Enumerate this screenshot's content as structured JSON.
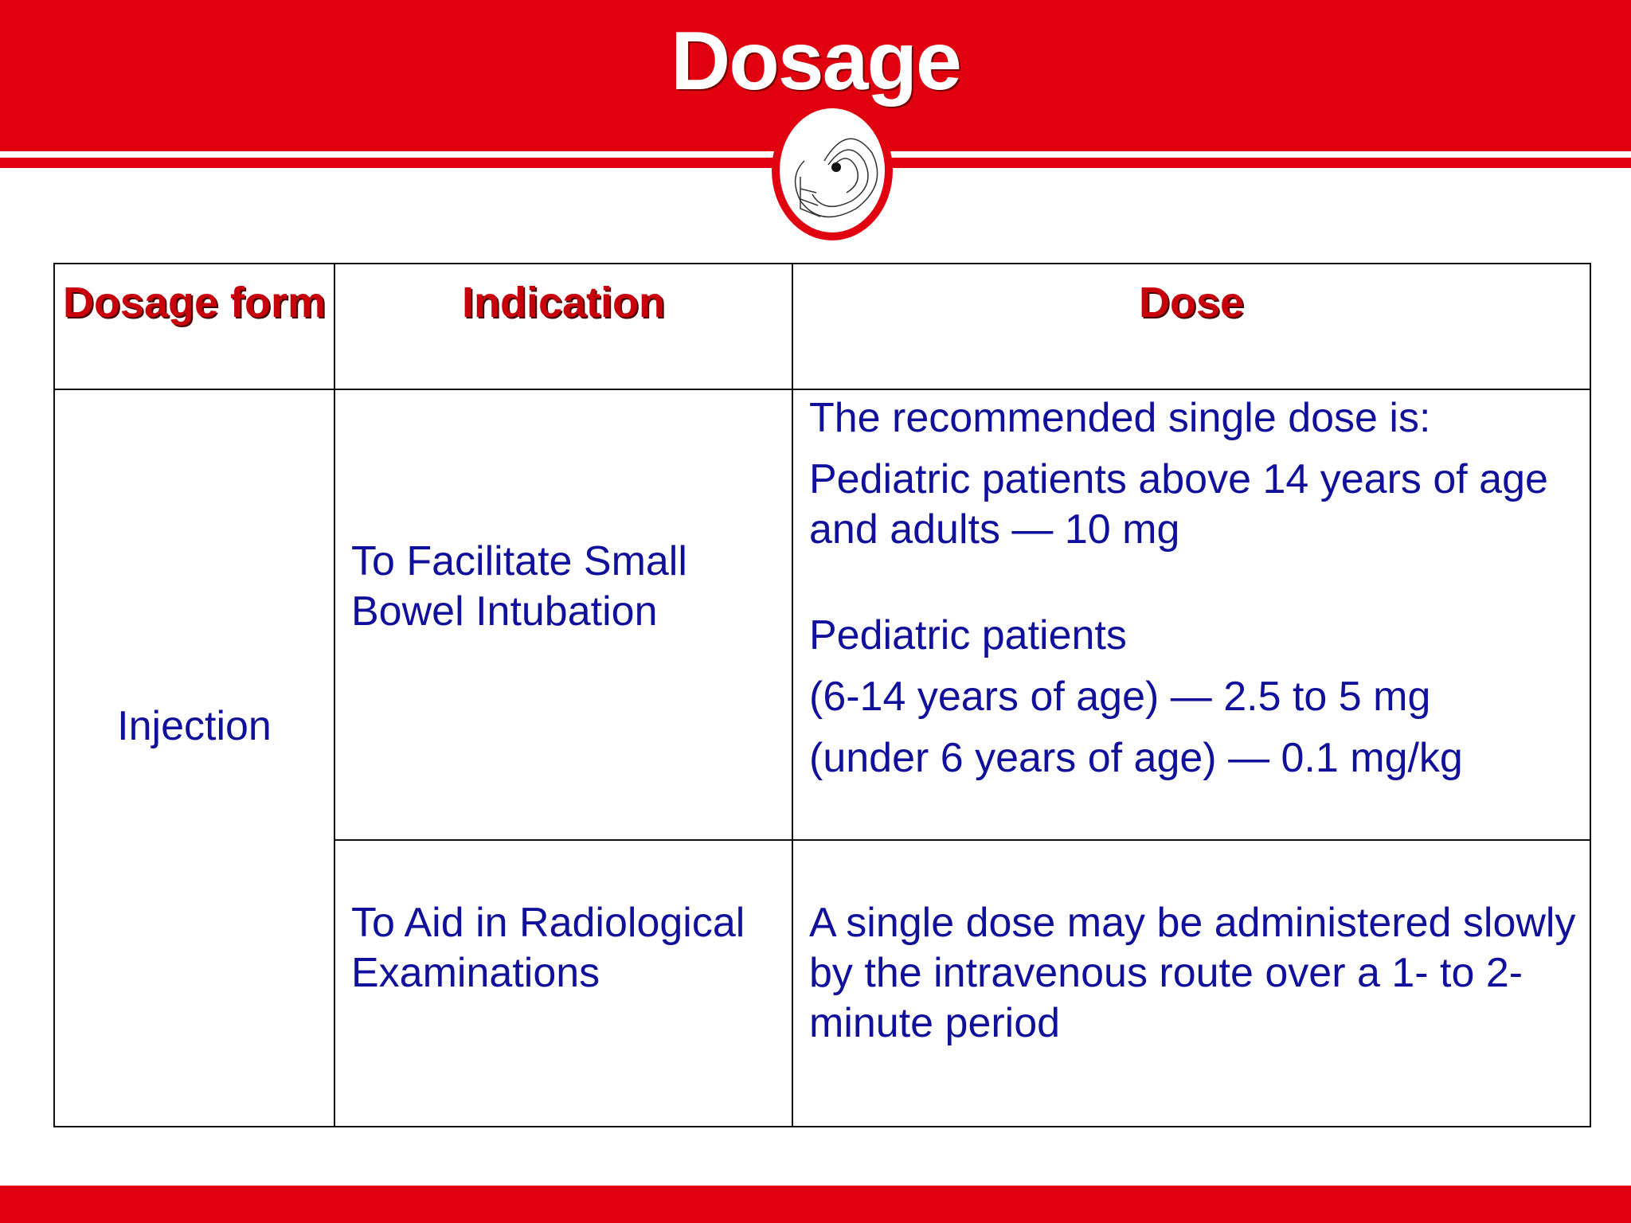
{
  "header": {
    "title": "Dosage"
  },
  "table": {
    "headers": [
      "Dosage form",
      "Indication",
      "Dose"
    ],
    "dosage_form": "Injection",
    "rows": [
      {
        "indication": "To Facilitate Small Bowel Intubation",
        "dose": [
          "The recommended single dose is:",
          "Pediatric patients above 14 years of age and adults — 10 mg",
          "Pediatric patients",
          "(6-14 years of age) — 2.5 to 5 mg",
          "(under 6 years of age) — 0.1 mg/kg"
        ]
      },
      {
        "indication": "To Aid in Radiological Examinations",
        "dose": [
          "A single dose may be administered slowly by the intravenous route over a 1- to 2-minute period"
        ]
      }
    ]
  }
}
